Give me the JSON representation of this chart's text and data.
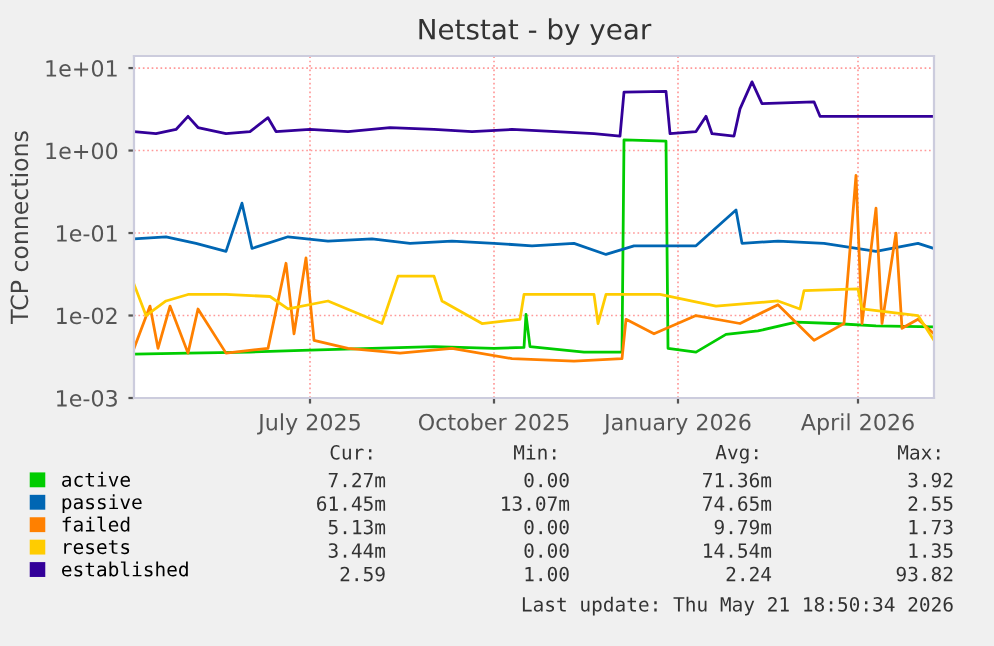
{
  "chart_data": {
    "type": "line",
    "title": "Netstat - by year",
    "ylabel": "TCP connections",
    "log": "y",
    "grid": true,
    "legend": "bottom left",
    "marker": "none",
    "line_style": "solid",
    "xlim": [
      "2025-04-04",
      "2026-05-09"
    ],
    "xticks": [
      {
        "value": "2025-07-01",
        "label": "July 2025"
      },
      {
        "value": "2025-10-01",
        "label": "October 2025"
      },
      {
        "value": "2026-01-01",
        "label": "January 2026"
      },
      {
        "value": "2026-04-01",
        "label": "April 2026"
      }
    ],
    "ylim": [
      0.001,
      14
    ],
    "yticks": [
      {
        "value": 0.001,
        "label": "1e-03"
      },
      {
        "value": 0.01,
        "label": "1e-02"
      },
      {
        "value": 0.1,
        "label": "1e-01"
      },
      {
        "value": 1,
        "label": "1e+00"
      },
      {
        "value": 10,
        "label": "1e+01"
      }
    ],
    "series": [
      {
        "name": "active",
        "color": "#00cc00",
        "x": [
          "2025-04-04",
          "2025-05-01",
          "2025-06-01",
          "2025-07-01",
          "2025-08-01",
          "2025-09-01",
          "2025-10-01",
          "2025-10-16",
          "2025-10-17",
          "2025-10-19",
          "2025-11-15",
          "2025-12-04",
          "2025-12-05",
          "2025-12-26",
          "2025-12-27",
          "2026-01-10",
          "2026-01-25",
          "2026-02-10",
          "2026-03-01",
          "2026-03-20",
          "2026-04-10",
          "2026-05-09"
        ],
        "values": [
          0.0034,
          0.0035,
          0.0036,
          0.0038,
          0.004,
          0.0042,
          0.004,
          0.0041,
          0.0103,
          0.0042,
          0.0036,
          0.0036,
          1.35,
          1.3,
          0.004,
          0.0036,
          0.0059,
          0.0065,
          0.0083,
          0.008,
          0.0075,
          0.0073
        ]
      },
      {
        "name": "passive",
        "color": "#0066b3",
        "x": [
          "2025-04-04",
          "2025-04-20",
          "2025-05-05",
          "2025-05-20",
          "2025-05-28",
          "2025-06-02",
          "2025-06-20",
          "2025-07-10",
          "2025-08-01",
          "2025-08-20",
          "2025-09-10",
          "2025-10-01",
          "2025-10-20",
          "2025-11-10",
          "2025-11-26",
          "2025-12-10",
          "2026-01-10",
          "2026-01-30",
          "2026-02-02",
          "2026-02-20",
          "2026-03-15",
          "2026-04-10",
          "2026-05-01",
          "2026-05-09"
        ],
        "values": [
          0.085,
          0.09,
          0.075,
          0.06,
          0.23,
          0.065,
          0.09,
          0.08,
          0.085,
          0.075,
          0.08,
          0.075,
          0.07,
          0.075,
          0.055,
          0.07,
          0.07,
          0.19,
          0.075,
          0.08,
          0.075,
          0.06,
          0.075,
          0.065
        ]
      },
      {
        "name": "failed",
        "color": "#ff8000",
        "x": [
          "2025-04-04",
          "2025-04-12",
          "2025-04-16",
          "2025-04-22",
          "2025-05-01",
          "2025-05-06",
          "2025-05-20",
          "2025-06-10",
          "2025-06-19",
          "2025-06-23",
          "2025-06-29",
          "2025-07-03",
          "2025-07-20",
          "2025-08-15",
          "2025-09-10",
          "2025-10-10",
          "2025-11-10",
          "2025-12-04",
          "2025-12-06",
          "2025-12-20",
          "2026-01-10",
          "2026-02-01",
          "2026-02-20",
          "2026-03-10",
          "2026-03-25",
          "2026-03-31",
          "2026-04-03",
          "2026-04-10",
          "2026-04-13",
          "2026-04-20",
          "2026-04-23",
          "2026-05-01",
          "2026-05-09"
        ],
        "values": [
          0.004,
          0.013,
          0.004,
          0.013,
          0.0035,
          0.012,
          0.0035,
          0.004,
          0.043,
          0.006,
          0.05,
          0.005,
          0.004,
          0.0035,
          0.004,
          0.003,
          0.0028,
          0.003,
          0.009,
          0.006,
          0.01,
          0.008,
          0.0135,
          0.005,
          0.008,
          0.5,
          0.008,
          0.2,
          0.008,
          0.1,
          0.007,
          0.009,
          0.006
        ]
      },
      {
        "name": "resets",
        "color": "#ffcc00",
        "x": [
          "2025-04-04",
          "2025-04-10",
          "2025-04-20",
          "2025-05-01",
          "2025-05-20",
          "2025-06-11",
          "2025-06-20",
          "2025-07-10",
          "2025-08-06",
          "2025-08-14",
          "2025-09-01",
          "2025-09-05",
          "2025-09-25",
          "2025-10-14",
          "2025-10-16",
          "2025-11-20",
          "2025-11-22",
          "2025-11-26",
          "2025-12-23",
          "2026-01-20",
          "2026-02-20",
          "2026-03-03",
          "2026-03-05",
          "2026-04-01",
          "2026-04-03",
          "2026-05-01",
          "2026-05-09"
        ],
        "values": [
          0.024,
          0.01,
          0.015,
          0.018,
          0.018,
          0.017,
          0.012,
          0.015,
          0.008,
          0.03,
          0.03,
          0.015,
          0.008,
          0.009,
          0.018,
          0.018,
          0.008,
          0.018,
          0.018,
          0.013,
          0.015,
          0.012,
          0.02,
          0.021,
          0.012,
          0.01,
          0.005
        ]
      },
      {
        "name": "established",
        "color": "#330099",
        "x": [
          "2025-04-04",
          "2025-04-15",
          "2025-04-25",
          "2025-05-01",
          "2025-05-06",
          "2025-05-20",
          "2025-06-01",
          "2025-06-10",
          "2025-06-14",
          "2025-07-01",
          "2025-07-20",
          "2025-08-10",
          "2025-09-01",
          "2025-09-20",
          "2025-10-10",
          "2025-11-01",
          "2025-11-20",
          "2025-12-03",
          "2025-12-05",
          "2025-12-26",
          "2025-12-28",
          "2026-01-10",
          "2026-01-15",
          "2026-01-18",
          "2026-01-29",
          "2026-02-01",
          "2026-02-07",
          "2026-02-12",
          "2026-03-10",
          "2026-03-13",
          "2026-04-01",
          "2026-05-09"
        ],
        "values": [
          1.7,
          1.6,
          1.8,
          2.6,
          1.9,
          1.6,
          1.7,
          2.5,
          1.7,
          1.8,
          1.7,
          1.9,
          1.8,
          1.7,
          1.8,
          1.7,
          1.6,
          1.5,
          5.1,
          5.2,
          1.6,
          1.7,
          2.6,
          1.6,
          1.5,
          3.2,
          6.8,
          3.7,
          3.9,
          2.6,
          2.6,
          2.6
        ]
      }
    ],
    "annotations": [
      "Cur:",
      "Min:",
      "Avg:",
      "Max:",
      "7.27m",
      "0.00",
      "71.36m",
      "3.92",
      "61.45m",
      "13.07m",
      "74.65m",
      "2.55",
      "5.13m",
      "0.00",
      "9.79m",
      "1.73",
      "3.44m",
      "0.00",
      "14.54m",
      "1.35",
      "2.59",
      "1.00",
      "2.24",
      "93.82",
      "Last update: Thu May 21 18:50:34 2026"
    ]
  }
}
